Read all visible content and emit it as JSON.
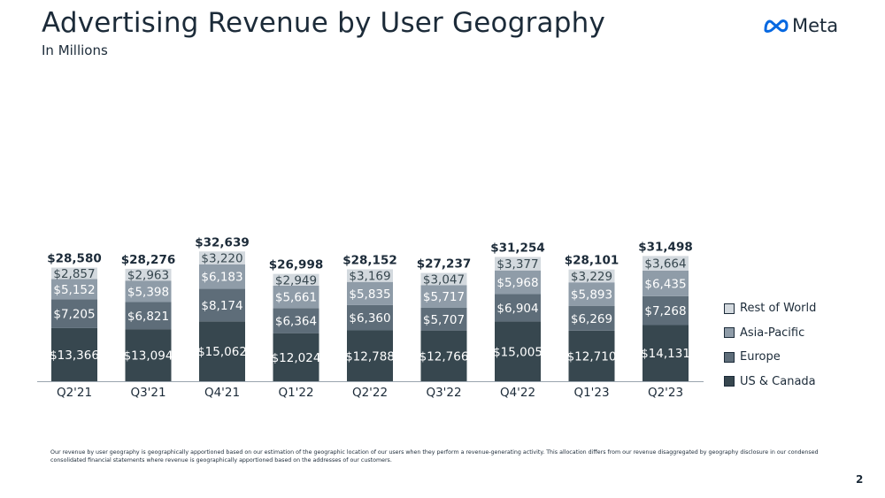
{
  "page": {
    "title": "Advertising Revenue by User Geography",
    "subtitle": "In Millions",
    "logo_text": "Meta",
    "footnote": "Our revenue by user geography is geographically apportioned based on our estimation of the geographic location of our users when they perform a revenue-generating activity. This allocation differs from our revenue disaggregated by geography disclosure in our condensed consolidated financial statements where revenue is geographically apportioned based on the addresses of our customers.",
    "page_number": "2"
  },
  "colors": {
    "us_canada": "#37474f",
    "europe": "#5e6d79",
    "asia_pacific": "#8f9ca8",
    "rest_of_world": "#d3d9de",
    "logo_blue": "#0668e1"
  },
  "chart_data": {
    "type": "bar",
    "stacked": true,
    "categories": [
      "Q2'21",
      "Q3'21",
      "Q4'21",
      "Q1'22",
      "Q2'22",
      "Q3'22",
      "Q4'22",
      "Q1'23",
      "Q2'23"
    ],
    "series": [
      {
        "name": "US & Canada",
        "values": [
          13366,
          13094,
          15062,
          12024,
          12788,
          12766,
          15005,
          12710,
          14131
        ],
        "labels": [
          "$13,366",
          "$13,094",
          "$15,062",
          "$12,024",
          "$12,788",
          "$12,766",
          "$15,005",
          "$12,710",
          "$14,131"
        ]
      },
      {
        "name": "Europe",
        "values": [
          7205,
          6821,
          8174,
          6364,
          6360,
          5707,
          6904,
          6269,
          7268
        ],
        "labels": [
          "$7,205",
          "$6,821",
          "$8,174",
          "$6,364",
          "$6,360",
          "$5,707",
          "$6,904",
          "$6,269",
          "$7,268"
        ]
      },
      {
        "name": "Asia-Pacific",
        "values": [
          5152,
          5398,
          6183,
          5661,
          5835,
          5717,
          5968,
          5893,
          6435
        ],
        "labels": [
          "$5,152",
          "$5,398",
          "$6,183",
          "$5,661",
          "$5,835",
          "$5,717",
          "$5,968",
          "$5,893",
          "$6,435"
        ]
      },
      {
        "name": "Rest of World",
        "values": [
          2857,
          2963,
          3220,
          2949,
          3169,
          3047,
          3377,
          3229,
          3664
        ],
        "labels": [
          "$2,857",
          "$2,963",
          "$3,220",
          "$2,949",
          "$3,169",
          "$3,047",
          "$3,377",
          "$3,229",
          "$3,664"
        ]
      }
    ],
    "totals": [
      28580,
      28276,
      32639,
      26998,
      28152,
      27237,
      31254,
      28101,
      31498
    ],
    "total_labels": [
      "$28,580",
      "$28,276",
      "$32,639",
      "$26,998",
      "$28,152",
      "$27,237",
      "$31,254",
      "$28,101",
      "$31,498"
    ],
    "title": "Advertising Revenue by User Geography",
    "subtitle": "In Millions",
    "xlabel": "",
    "ylabel": "",
    "legend_position": "right",
    "grid": false
  }
}
